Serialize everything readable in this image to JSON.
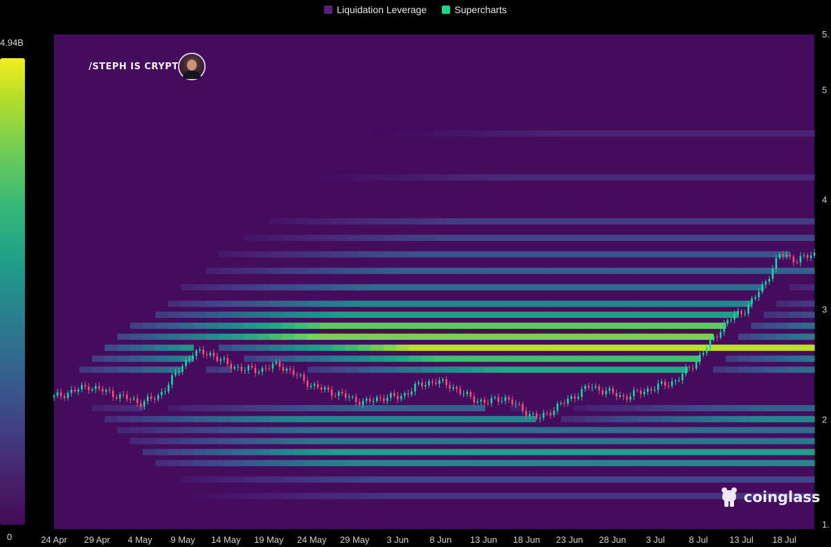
{
  "legend": [
    {
      "label": "Liquidation Leverage",
      "color": "#5b1f7a"
    },
    {
      "label": "Supercharts",
      "color": "#1fd48a"
    }
  ],
  "colorbar": {
    "max_label": "4.94B",
    "min_label": "0"
  },
  "watermark": "/STEPH IS CRYPTO",
  "brand": "coinglass",
  "chart_data": {
    "type": "heatmap",
    "title": "",
    "xlabel": "",
    "ylabel": "",
    "x_ticks": [
      "24 Apr",
      "29 Apr",
      "4 May",
      "9 May",
      "14 May",
      "19 May",
      "24 May",
      "29 May",
      "3 Jun",
      "8 Jun",
      "13 Jun",
      "18 Jun",
      "23 Jun",
      "28 Jun",
      "3 Jul",
      "8 Jul",
      "13 Jul",
      "18 Jul"
    ],
    "y_ticks": [
      "1.",
      "2",
      "3",
      "4",
      "5",
      "5."
    ],
    "y_range": [
      1.0,
      5.5
    ],
    "colorscale": "viridis",
    "color_range": {
      "min": 0,
      "max": "4.94B"
    },
    "price_series": {
      "name": "",
      "type": "candlestick",
      "approx_close": [
        2.2,
        2.25,
        2.3,
        2.25,
        2.2,
        2.15,
        2.2,
        2.4,
        2.6,
        2.6,
        2.5,
        2.45,
        2.45,
        2.5,
        2.4,
        2.3,
        2.25,
        2.2,
        2.15,
        2.2,
        2.2,
        2.3,
        2.35,
        2.3,
        2.2,
        2.15,
        2.2,
        2.1,
        2.0,
        2.1,
        2.2,
        2.3,
        2.25,
        2.2,
        2.25,
        2.3,
        2.35,
        2.5,
        2.7,
        2.9,
        3.0,
        3.2,
        3.5,
        3.45,
        3.5
      ]
    },
    "bands": [
      {
        "price": 1.3,
        "intensity": 0.15
      },
      {
        "price": 1.45,
        "intensity": 0.2
      },
      {
        "price": 1.6,
        "intensity": 0.45
      },
      {
        "price": 1.7,
        "intensity": 0.55
      },
      {
        "price": 1.8,
        "intensity": 0.4
      },
      {
        "price": 1.9,
        "intensity": 0.35
      },
      {
        "price": 2.0,
        "intensity": 0.45
      },
      {
        "price": 2.1,
        "intensity": 0.3
      },
      {
        "price": 2.45,
        "intensity": 0.6
      },
      {
        "price": 2.55,
        "intensity": 0.7
      },
      {
        "price": 2.65,
        "intensity": 0.9
      },
      {
        "price": 2.75,
        "intensity": 0.8
      },
      {
        "price": 2.85,
        "intensity": 0.75
      },
      {
        "price": 2.95,
        "intensity": 0.55
      },
      {
        "price": 3.05,
        "intensity": 0.45
      },
      {
        "price": 3.2,
        "intensity": 0.35
      },
      {
        "price": 3.35,
        "intensity": 0.3
      },
      {
        "price": 3.5,
        "intensity": 0.25
      },
      {
        "price": 3.65,
        "intensity": 0.2
      },
      {
        "price": 3.8,
        "intensity": 0.18
      },
      {
        "price": 4.2,
        "intensity": 0.12
      },
      {
        "price": 4.6,
        "intensity": 0.1
      }
    ]
  }
}
